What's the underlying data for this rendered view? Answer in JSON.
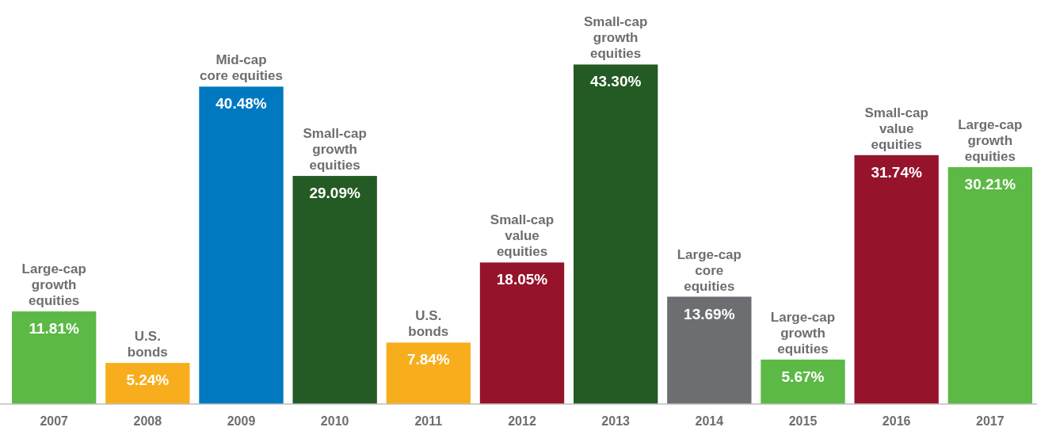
{
  "chart_data": {
    "type": "bar",
    "categories": [
      "2007",
      "2008",
      "2009",
      "2010",
      "2011",
      "2012",
      "2013",
      "2014",
      "2015",
      "2016",
      "2017"
    ],
    "values": [
      11.81,
      5.24,
      40.48,
      29.09,
      7.84,
      18.05,
      43.3,
      13.69,
      5.67,
      31.74,
      30.21
    ],
    "colors": [
      "#5cb946",
      "#f8ae1c",
      "#0079c1",
      "#245a23",
      "#f8ae1c",
      "#96132c",
      "#245a23",
      "#6d6e71",
      "#5cb946",
      "#96132c",
      "#5cb946"
    ],
    "value_labels": [
      "11.81%",
      "5.24%",
      "40.48%",
      "29.09%",
      "7.84%",
      "18.05%",
      "43.30%",
      "13.69%",
      "5.67%",
      "31.74%",
      "30.21%"
    ],
    "annotations": [
      {
        "text": "Large-cap\ngrowth\nequities",
        "x": "2007",
        "y": 11.81
      },
      {
        "text": "U.S.\nbonds",
        "x": "2008",
        "y": 5.24
      },
      {
        "text": "Mid-cap\ncore equities",
        "x": "2009",
        "y": 40.48
      },
      {
        "text": "Small-cap\ngrowth\nequities",
        "x": "2010",
        "y": 29.09
      },
      {
        "text": "U.S.\nbonds",
        "x": "2011",
        "y": 7.84
      },
      {
        "text": "Small-cap\nvalue\nequities",
        "x": "2012",
        "y": 18.05
      },
      {
        "text": "Small-cap\ngrowth\nequities",
        "x": "2013",
        "y": 43.3
      },
      {
        "text": "Large-cap\ncore\nequities",
        "x": "2014",
        "y": 13.69
      },
      {
        "text": "Large-cap\ngrowth\nequities",
        "x": "2015",
        "y": 5.67
      },
      {
        "text": "Small-cap\nvalue\nequities",
        "x": "2016",
        "y": 31.74
      },
      {
        "text": "Large-cap\ngrowth\nequities",
        "x": "2017",
        "y": 30.21
      }
    ]
  }
}
